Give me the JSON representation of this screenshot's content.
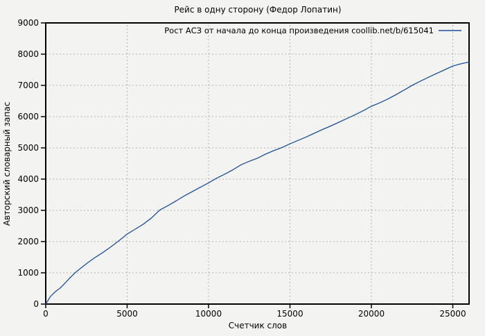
{
  "colors": {
    "background": "#f3f3f1",
    "line": "#1c4f9e",
    "grid": "#b3b3b3",
    "border": "#000000",
    "text": "#000000"
  },
  "chart_data": {
    "type": "line",
    "title": "Рейс в одну сторону (Федор Лопатин)",
    "xlabel": "Счетчик слов",
    "ylabel": "Авторский словарный запас",
    "xlim": [
      0,
      26000
    ],
    "ylim": [
      0,
      9000
    ],
    "x_ticks": [
      0,
      5000,
      10000,
      15000,
      20000,
      25000
    ],
    "y_ticks": [
      0,
      1000,
      2000,
      3000,
      4000,
      5000,
      6000,
      7000,
      8000,
      9000
    ],
    "grid": true,
    "legend_position": "top-right-inside",
    "series": [
      {
        "name": "Рост АСЗ от начала до конца произведения coollib.net/b/615041",
        "points": [
          [
            0,
            0
          ],
          [
            300,
            250
          ],
          [
            600,
            400
          ],
          [
            900,
            520
          ],
          [
            1200,
            680
          ],
          [
            1500,
            850
          ],
          [
            1800,
            1000
          ],
          [
            2200,
            1170
          ],
          [
            2600,
            1330
          ],
          [
            3000,
            1480
          ],
          [
            3500,
            1650
          ],
          [
            4000,
            1830
          ],
          [
            4500,
            2030
          ],
          [
            5000,
            2240
          ],
          [
            5500,
            2400
          ],
          [
            6000,
            2560
          ],
          [
            6500,
            2760
          ],
          [
            7000,
            3010
          ],
          [
            7500,
            3150
          ],
          [
            8000,
            3300
          ],
          [
            8500,
            3460
          ],
          [
            9000,
            3600
          ],
          [
            9500,
            3740
          ],
          [
            10000,
            3880
          ],
          [
            10500,
            4030
          ],
          [
            11000,
            4160
          ],
          [
            11500,
            4300
          ],
          [
            12000,
            4460
          ],
          [
            12500,
            4570
          ],
          [
            13000,
            4670
          ],
          [
            13500,
            4800
          ],
          [
            14000,
            4910
          ],
          [
            14500,
            5010
          ],
          [
            15000,
            5130
          ],
          [
            15500,
            5240
          ],
          [
            16000,
            5350
          ],
          [
            16500,
            5470
          ],
          [
            17000,
            5590
          ],
          [
            17500,
            5700
          ],
          [
            18000,
            5820
          ],
          [
            18500,
            5940
          ],
          [
            19000,
            6060
          ],
          [
            19500,
            6190
          ],
          [
            20000,
            6330
          ],
          [
            20500,
            6440
          ],
          [
            21000,
            6560
          ],
          [
            21500,
            6700
          ],
          [
            22000,
            6850
          ],
          [
            22500,
            7000
          ],
          [
            23000,
            7130
          ],
          [
            23500,
            7260
          ],
          [
            24000,
            7380
          ],
          [
            24500,
            7500
          ],
          [
            25000,
            7620
          ],
          [
            25500,
            7690
          ],
          [
            26000,
            7750
          ]
        ]
      }
    ]
  }
}
